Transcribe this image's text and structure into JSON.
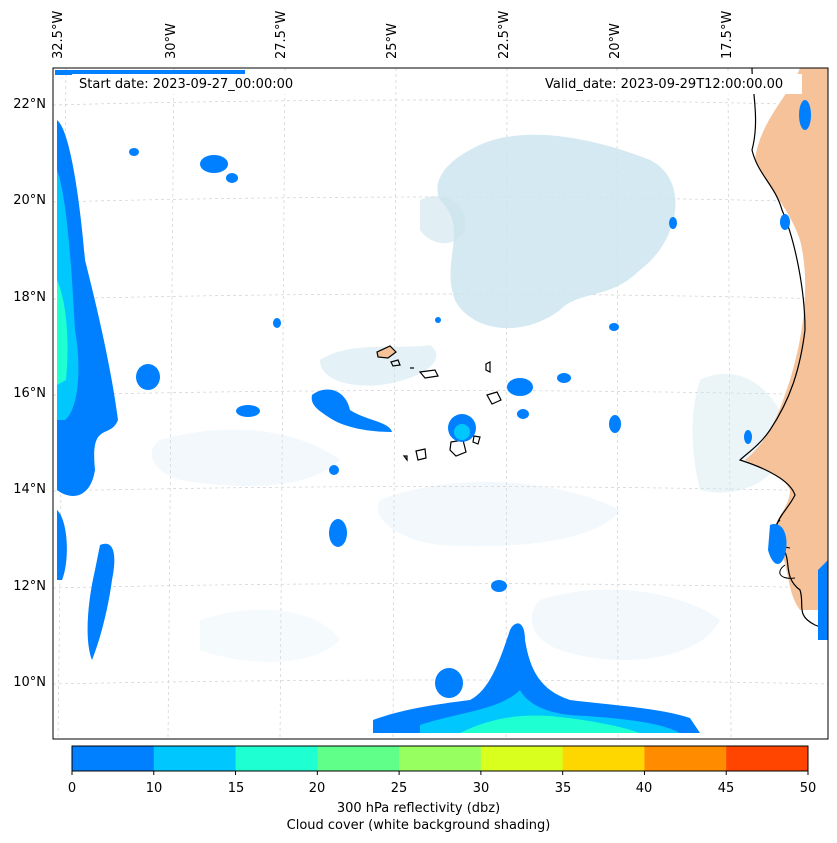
{
  "map": {
    "start_date": "Start date: 2023-09-27_00:00:00",
    "valid_date": "Valid_date: 2023-09-29T12:00:00.00",
    "lon_labels": [
      "32.5°W",
      "30°W",
      "27.5°W",
      "25°W",
      "22.5°W",
      "20°W",
      "17.5°W"
    ],
    "lat_labels": [
      "22°N",
      "20°N",
      "18°N",
      "16°N",
      "14°N",
      "12°N",
      "10°N"
    ]
  },
  "colorbar": {
    "ticks": [
      "0",
      "10",
      "15",
      "20",
      "25",
      "30",
      "35",
      "40",
      "45",
      "50"
    ],
    "colors": [
      "#0080ff",
      "#00c8ff",
      "#1effd2",
      "#60ff8a",
      "#98ff60",
      "#d8ff1e",
      "#ffd700",
      "#ff8c00",
      "#ff4500"
    ],
    "label_line1": "300 hPa reflectivity (dbz)",
    "label_line2": "Cloud cover (white background shading)"
  },
  "colors": {
    "land": "#f5c29a",
    "cloud": "#cde5ee",
    "refl_low": "#0080ff",
    "refl_mid": "#00c8ff",
    "refl_high": "#1effd2",
    "coast": "#000000"
  }
}
